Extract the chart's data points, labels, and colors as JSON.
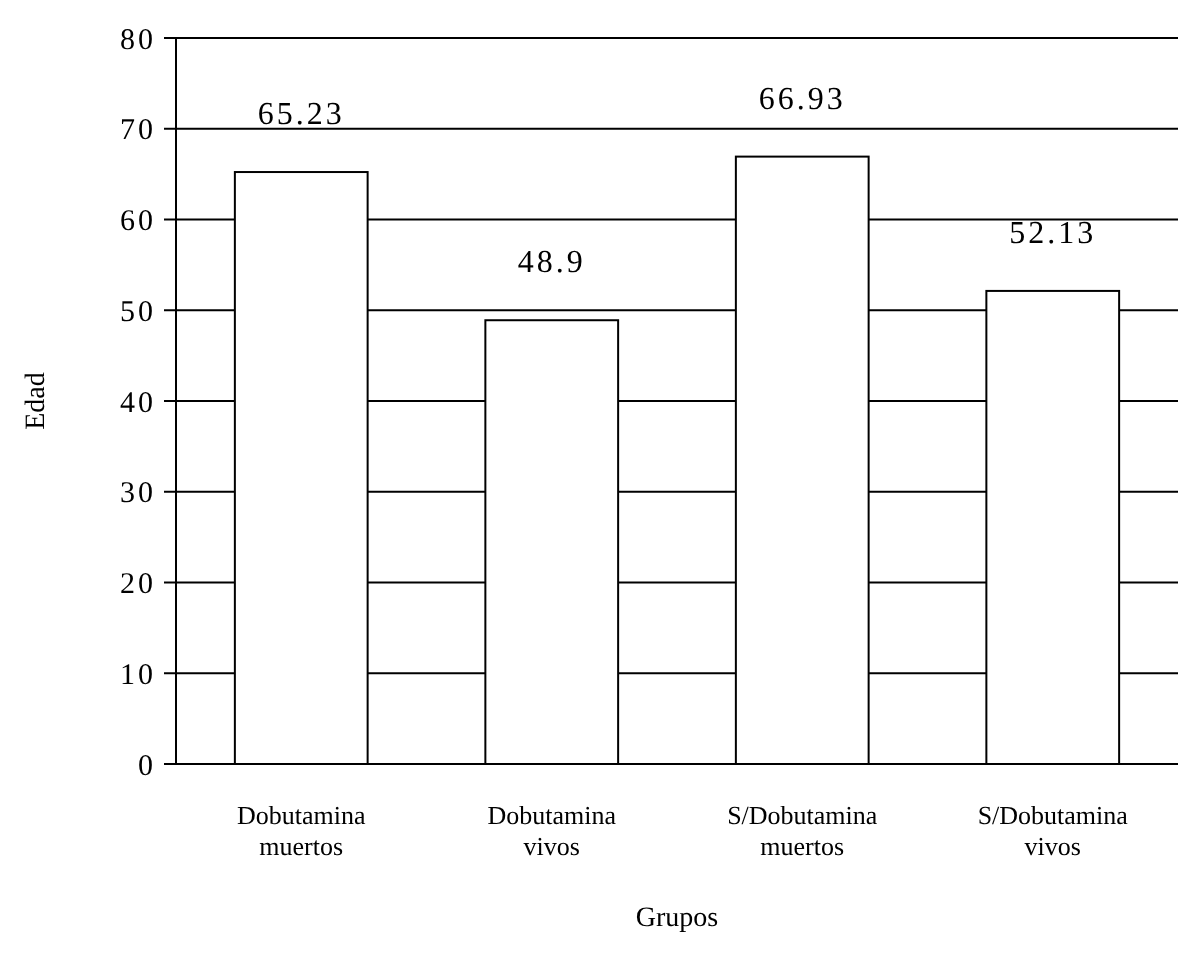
{
  "chart_data": {
    "type": "bar",
    "xlabel": "Grupos",
    "ylabel": "Edad",
    "categories": [
      "Dobutamina muertos",
      "Dobutamina vivos",
      "S/Dobutamina muertos",
      "S/Dobutamina vivos"
    ],
    "values": [
      65.23,
      48.9,
      66.93,
      52.13
    ],
    "color": "#ffffff",
    "ylim": [
      0,
      80
    ],
    "yticks": [
      0,
      10,
      20,
      30,
      40,
      50,
      60,
      70,
      80
    ],
    "grid": "y",
    "data_labels": true
  }
}
